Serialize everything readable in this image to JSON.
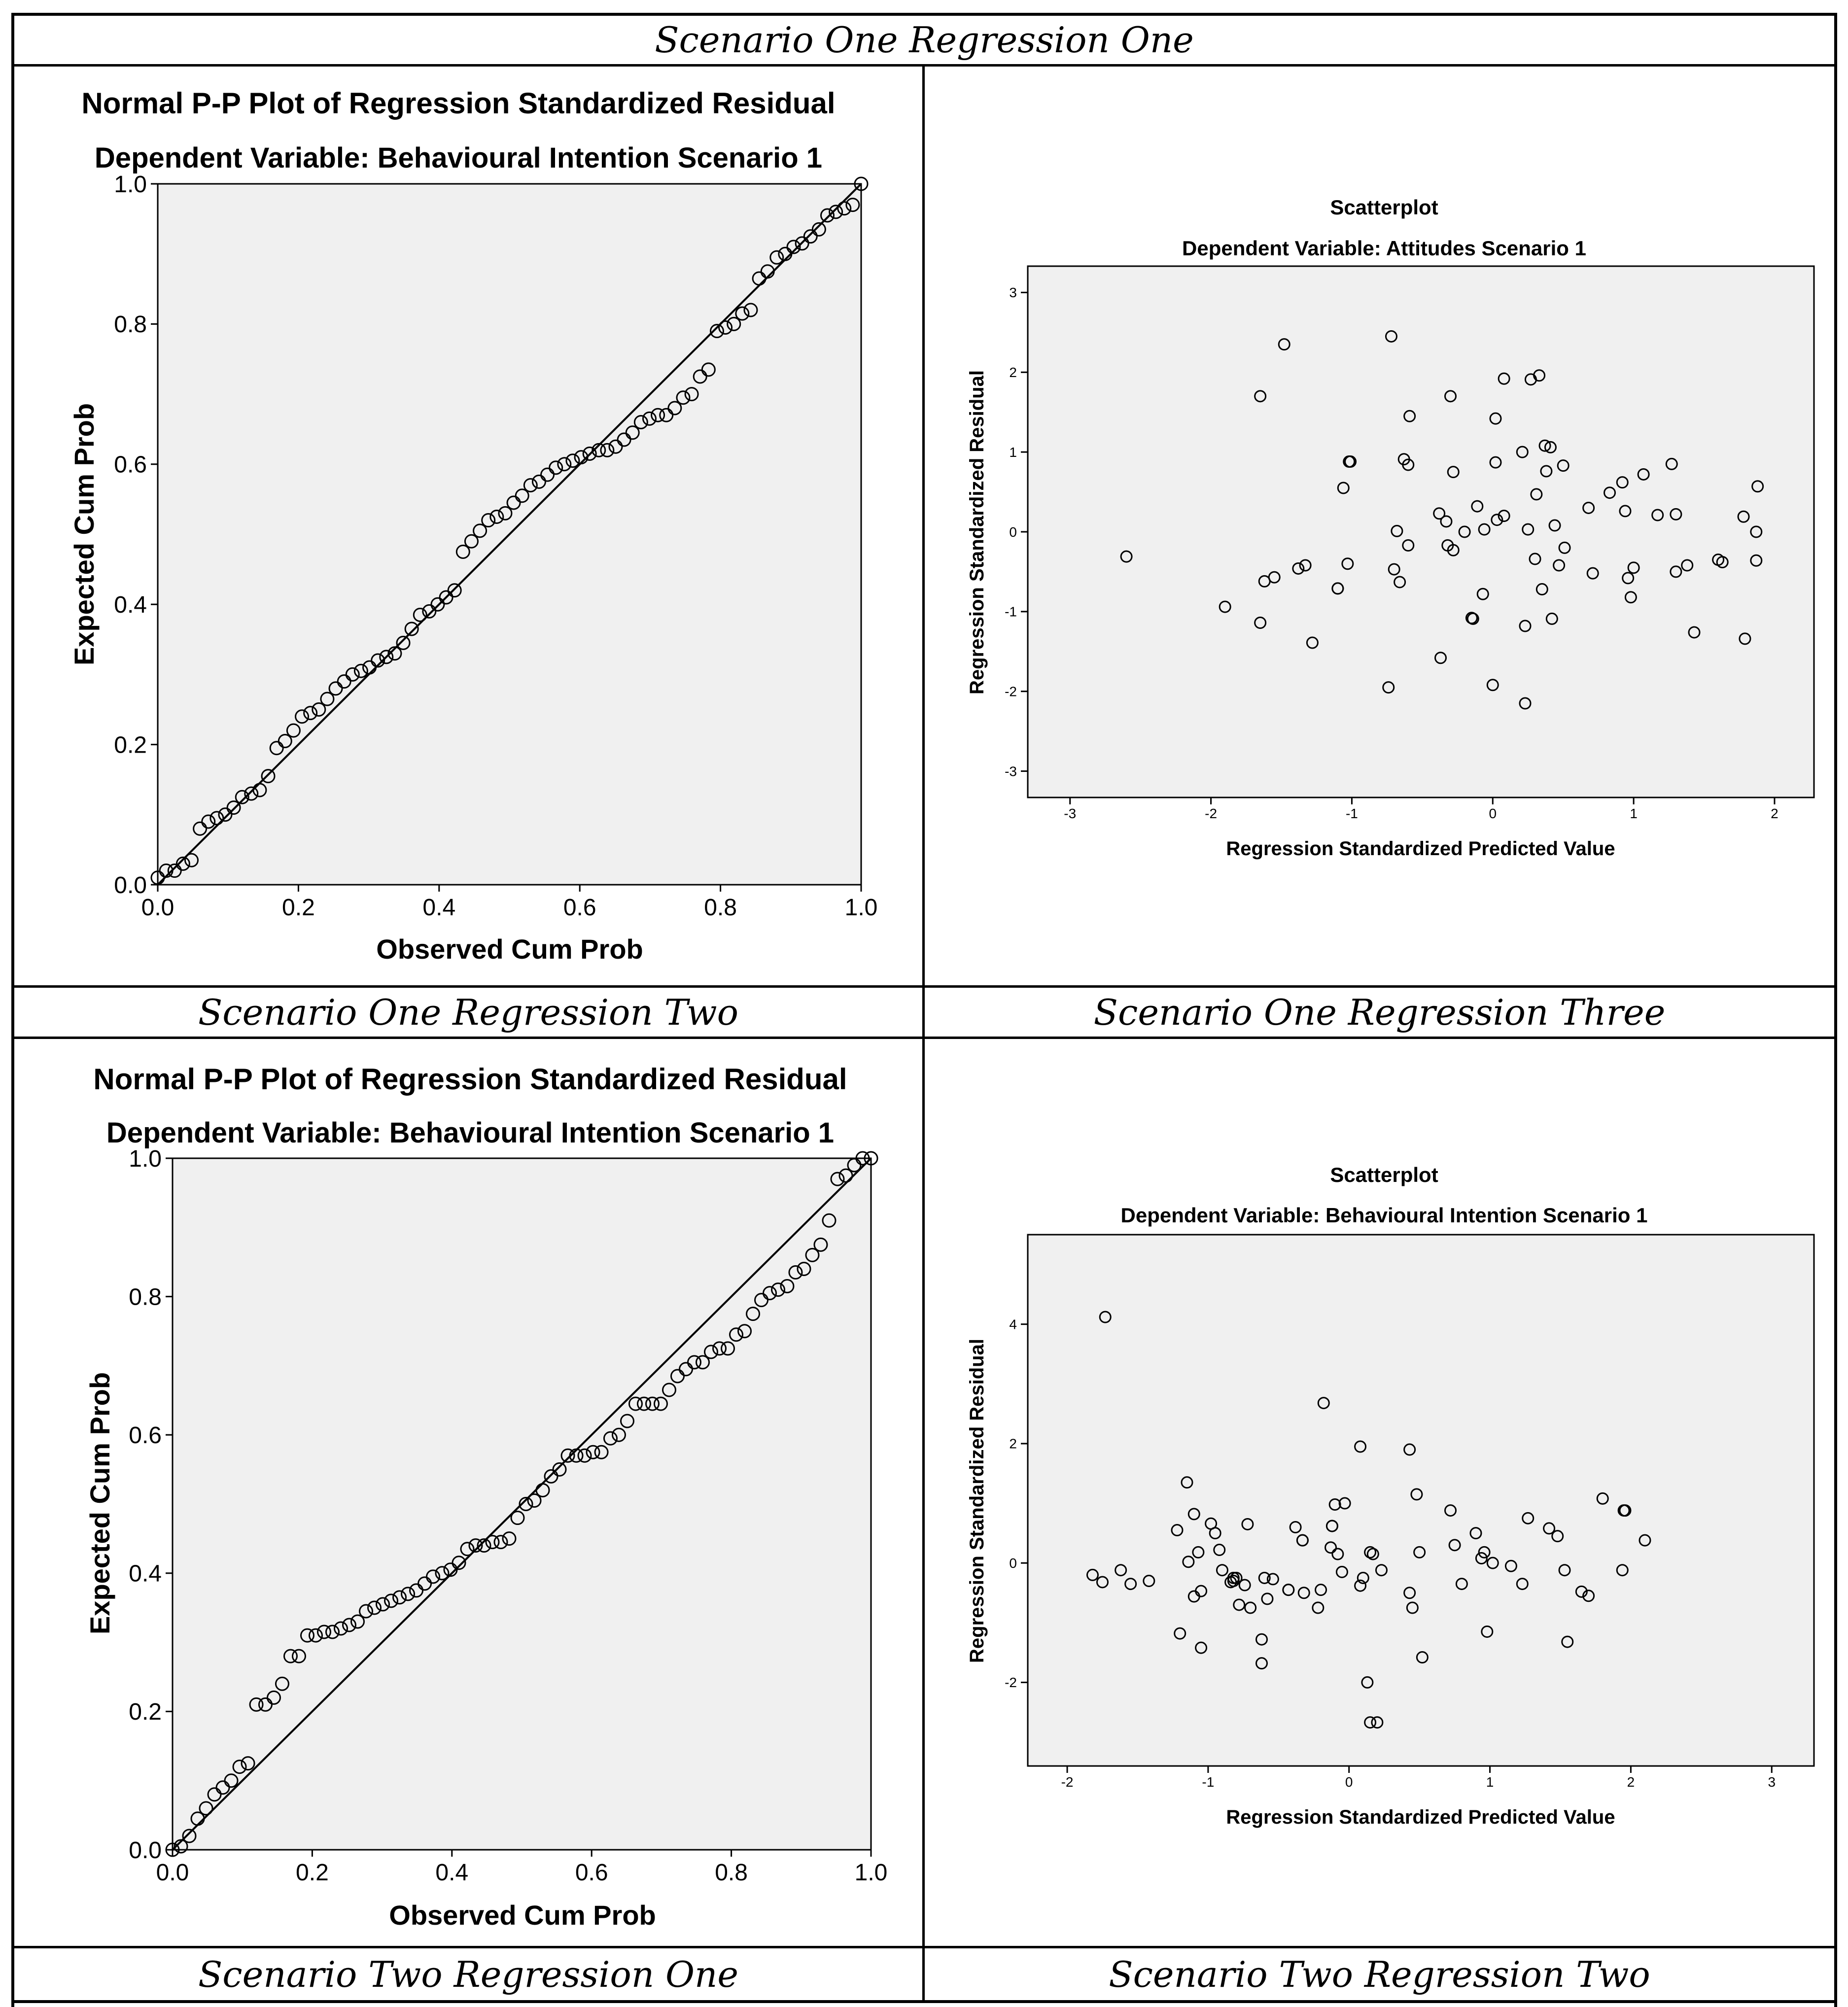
{
  "captions": {
    "top": "Scenario One Regression One",
    "middle_left": "Scenario One Regression Two",
    "middle_right": "Scenario One Regression Three",
    "bottom_left": "Scenario Two Regression One",
    "bottom_right": "Scenario Two Regression Two"
  },
  "chart_data": [
    {
      "type": "scatter",
      "title": "Normal P-P Plot of Regression Standardized Residual",
      "subtitle": "Dependent Variable: Behavioural Intention Scenario 1",
      "xlabel": "Observed Cum Prob",
      "ylabel": "Expected Cum Prob",
      "xlim": [
        0,
        1
      ],
      "ylim": [
        0,
        1
      ],
      "xticks": [
        "0.0",
        "0.2",
        "0.4",
        "0.6",
        "0.8",
        "1.0"
      ],
      "yticks": [
        "0.0",
        "0.2",
        "0.4",
        "0.6",
        "0.8",
        "1.0"
      ],
      "reference_line": [
        [
          0,
          0
        ],
        [
          1,
          1
        ]
      ],
      "x": [
        0.0,
        0.012,
        0.024,
        0.036,
        0.048,
        0.06,
        0.072,
        0.084,
        0.096,
        0.108,
        0.12,
        0.133,
        0.145,
        0.157,
        0.169,
        0.181,
        0.193,
        0.205,
        0.217,
        0.229,
        0.241,
        0.253,
        0.265,
        0.277,
        0.289,
        0.301,
        0.313,
        0.325,
        0.337,
        0.349,
        0.361,
        0.373,
        0.386,
        0.398,
        0.41,
        0.422,
        0.434,
        0.446,
        0.458,
        0.47,
        0.482,
        0.494,
        0.506,
        0.518,
        0.53,
        0.542,
        0.554,
        0.566,
        0.578,
        0.59,
        0.602,
        0.614,
        0.627,
        0.639,
        0.651,
        0.663,
        0.675,
        0.687,
        0.699,
        0.711,
        0.723,
        0.735,
        0.747,
        0.759,
        0.771,
        0.783,
        0.795,
        0.807,
        0.819,
        0.831,
        0.843,
        0.855,
        0.867,
        0.88,
        0.892,
        0.904,
        0.916,
        0.928,
        0.94,
        0.952,
        0.964,
        0.976,
        0.988,
        1.0
      ],
      "values": [
        0.01,
        0.02,
        0.02,
        0.03,
        0.035,
        0.08,
        0.09,
        0.095,
        0.1,
        0.11,
        0.125,
        0.13,
        0.135,
        0.155,
        0.195,
        0.205,
        0.22,
        0.24,
        0.245,
        0.25,
        0.265,
        0.28,
        0.29,
        0.3,
        0.305,
        0.31,
        0.32,
        0.325,
        0.33,
        0.345,
        0.365,
        0.385,
        0.39,
        0.4,
        0.41,
        0.42,
        0.475,
        0.49,
        0.505,
        0.52,
        0.525,
        0.53,
        0.545,
        0.555,
        0.57,
        0.575,
        0.585,
        0.595,
        0.6,
        0.605,
        0.61,
        0.615,
        0.62,
        0.62,
        0.625,
        0.635,
        0.645,
        0.66,
        0.665,
        0.67,
        0.67,
        0.68,
        0.695,
        0.7,
        0.725,
        0.735,
        0.79,
        0.795,
        0.8,
        0.815,
        0.82,
        0.865,
        0.875,
        0.895,
        0.9,
        0.91,
        0.915,
        0.925,
        0.935,
        0.955,
        0.96,
        0.965,
        0.97,
        1.0
      ]
    },
    {
      "type": "scatter",
      "title": "Scatterplot",
      "subtitle": "Dependent Variable: Attitudes Scenario 1",
      "xlabel": "Regression Standardized Predicted Value",
      "ylabel": "Regression Standardized Residual",
      "xlim": [
        -3.3,
        2.28
      ],
      "ylim": [
        -3.33,
        3.33
      ],
      "xticks": [
        -3,
        -2,
        -1,
        0,
        1,
        2
      ],
      "yticks": [
        -3,
        -2,
        -1,
        0,
        1,
        2,
        3
      ],
      "x": [
        -2.6,
        -1.9,
        -1.65,
        -1.65,
        -1.62,
        -1.55,
        -1.48,
        -1.38,
        -1.33,
        -1.28,
        -1.1,
        -1.1,
        -1.06,
        -1.03,
        -1.02,
        -1.01,
        -0.74,
        -0.72,
        -0.7,
        -0.68,
        -0.66,
        -0.63,
        -0.6,
        -0.6,
        -0.59,
        -0.38,
        -0.37,
        -0.33,
        -0.32,
        -0.3,
        -0.28,
        -0.28,
        -0.2,
        -0.15,
        -0.14,
        -0.11,
        -0.07,
        -0.06,
        0.0,
        0.02,
        0.02,
        0.03,
        0.08,
        0.08,
        0.21,
        0.23,
        0.23,
        0.25,
        0.27,
        0.3,
        0.31,
        0.33,
        0.35,
        0.37,
        0.38,
        0.41,
        0.42,
        0.44,
        0.47,
        0.5,
        0.51,
        0.68,
        0.71,
        0.83,
        0.92,
        0.94,
        0.96,
        0.98,
        1.0,
        1.07,
        1.17,
        1.27,
        1.3,
        1.3,
        1.38,
        1.43,
        1.6,
        1.63,
        1.78,
        1.79,
        1.87,
        1.87,
        1.88
      ],
      "values": [
        -0.31,
        -0.94,
        -1.14,
        1.7,
        -0.62,
        -0.57,
        2.35,
        -0.46,
        -0.42,
        -1.39,
        -0.71,
        -0.71,
        0.55,
        -0.4,
        0.88,
        0.88,
        -1.95,
        2.45,
        -0.47,
        0.01,
        -0.63,
        0.91,
        0.84,
        -0.17,
        1.45,
        0.23,
        -1.58,
        0.13,
        -0.17,
        1.7,
        -0.23,
        0.75,
        0.0,
        -1.08,
        -1.09,
        0.32,
        -0.78,
        0.03,
        -1.92,
        0.87,
        1.42,
        0.15,
        0.2,
        1.92,
        1.0,
        -1.18,
        -2.15,
        0.03,
        1.91,
        -0.34,
        0.47,
        1.96,
        -0.72,
        1.08,
        0.76,
        1.06,
        -1.09,
        0.08,
        -0.42,
        0.83,
        -0.2,
        0.3,
        -0.52,
        0.49,
        0.62,
        0.26,
        -0.58,
        -0.82,
        -0.45,
        0.72,
        0.21,
        0.85,
        -0.5,
        0.22,
        -0.42,
        -1.26,
        -0.35,
        -0.38,
        0.19,
        -1.34,
        0.0,
        -0.36,
        0.57
      ]
    },
    {
      "type": "scatter",
      "title": "Normal P-P Plot of Regression Standardized Residual",
      "subtitle": "Dependent Variable: Behavioural Intention Scenario 1",
      "xlabel": "Observed Cum Prob",
      "ylabel": "Expected Cum Prob",
      "xlim": [
        0,
        1
      ],
      "ylim": [
        0,
        1
      ],
      "xticks": [
        "0.0",
        "0.2",
        "0.4",
        "0.6",
        "0.8",
        "1.0"
      ],
      "yticks": [
        "0.0",
        "0.2",
        "0.4",
        "0.6",
        "0.8",
        "1.0"
      ],
      "reference_line": [
        [
          0,
          0
        ],
        [
          1,
          1
        ]
      ],
      "x": [
        0.0,
        0.012,
        0.024,
        0.036,
        0.048,
        0.06,
        0.072,
        0.084,
        0.096,
        0.108,
        0.12,
        0.133,
        0.145,
        0.157,
        0.169,
        0.181,
        0.193,
        0.205,
        0.217,
        0.229,
        0.241,
        0.253,
        0.265,
        0.277,
        0.289,
        0.301,
        0.313,
        0.325,
        0.337,
        0.349,
        0.361,
        0.373,
        0.386,
        0.398,
        0.41,
        0.422,
        0.434,
        0.446,
        0.458,
        0.47,
        0.482,
        0.494,
        0.506,
        0.518,
        0.53,
        0.542,
        0.554,
        0.566,
        0.578,
        0.59,
        0.602,
        0.614,
        0.627,
        0.639,
        0.651,
        0.663,
        0.675,
        0.687,
        0.699,
        0.711,
        0.723,
        0.735,
        0.747,
        0.759,
        0.771,
        0.783,
        0.795,
        0.807,
        0.819,
        0.831,
        0.843,
        0.855,
        0.867,
        0.88,
        0.892,
        0.904,
        0.916,
        0.928,
        0.94,
        0.952,
        0.964,
        0.976,
        0.988,
        1.0
      ],
      "values": [
        0.0,
        0.005,
        0.02,
        0.045,
        0.06,
        0.08,
        0.09,
        0.1,
        0.12,
        0.125,
        0.21,
        0.21,
        0.22,
        0.24,
        0.28,
        0.28,
        0.31,
        0.31,
        0.315,
        0.315,
        0.32,
        0.325,
        0.33,
        0.345,
        0.35,
        0.355,
        0.36,
        0.365,
        0.37,
        0.375,
        0.385,
        0.395,
        0.4,
        0.405,
        0.415,
        0.435,
        0.44,
        0.44,
        0.445,
        0.445,
        0.45,
        0.48,
        0.5,
        0.505,
        0.52,
        0.54,
        0.55,
        0.57,
        0.57,
        0.57,
        0.575,
        0.575,
        0.595,
        0.6,
        0.62,
        0.645,
        0.645,
        0.645,
        0.645,
        0.665,
        0.685,
        0.695,
        0.705,
        0.705,
        0.72,
        0.725,
        0.725,
        0.745,
        0.75,
        0.775,
        0.795,
        0.805,
        0.81,
        0.815,
        0.835,
        0.84,
        0.86,
        0.875,
        0.91,
        0.97,
        0.975,
        0.99,
        1.0,
        1.0
      ]
    },
    {
      "type": "scatter",
      "title": "Scatterplot",
      "subtitle": "Dependent Variable: Behavioural Intention Scenario 1",
      "xlabel": "Regression Standardized Predicted Value",
      "ylabel": "Regression Standardized Residual",
      "xlim": [
        -2.28,
        3.3
      ],
      "ylim": [
        -3.4,
        5.5
      ],
      "xticks": [
        -2,
        -1,
        0,
        1,
        2,
        3
      ],
      "yticks": [
        -2,
        0,
        2,
        4
      ],
      "x": [
        -1.82,
        -1.75,
        -1.73,
        -1.62,
        -1.55,
        -1.42,
        -1.22,
        -1.2,
        -1.15,
        -1.14,
        -1.1,
        -1.1,
        -1.07,
        -1.05,
        -1.05,
        -0.98,
        -0.95,
        -0.92,
        -0.9,
        -0.84,
        -0.82,
        -0.82,
        -0.8,
        -0.78,
        -0.74,
        -0.72,
        -0.7,
        -0.62,
        -0.62,
        -0.6,
        -0.58,
        -0.54,
        -0.43,
        -0.43,
        -0.38,
        -0.33,
        -0.33,
        -0.32,
        -0.22,
        -0.2,
        -0.18,
        -0.13,
        -0.12,
        -0.12,
        -0.1,
        -0.08,
        -0.05,
        -0.03,
        0.08,
        0.08,
        0.1,
        0.13,
        0.15,
        0.15,
        0.17,
        0.2,
        0.23,
        0.43,
        0.43,
        0.45,
        0.48,
        0.5,
        0.52,
        0.72,
        0.75,
        0.8,
        0.9,
        0.94,
        0.96,
        0.98,
        1.02,
        1.15,
        1.23,
        1.27,
        1.42,
        1.48,
        1.53,
        1.55,
        1.65,
        1.7,
        1.8,
        1.94,
        1.95,
        1.96,
        2.1
      ],
      "values": [
        -0.2,
        -0.32,
        4.12,
        -0.12,
        -0.35,
        -0.3,
        0.55,
        -1.18,
        1.35,
        0.02,
        0.82,
        -0.56,
        0.18,
        -0.47,
        -1.42,
        0.66,
        0.5,
        0.22,
        -0.12,
        -0.32,
        -0.25,
        -0.3,
        -0.25,
        -0.7,
        -0.37,
        0.65,
        -0.75,
        -1.28,
        -1.68,
        -0.25,
        -0.6,
        -0.27,
        -0.45,
        -0.45,
        0.6,
        0.38,
        0.38,
        -0.5,
        -0.75,
        -0.45,
        2.68,
        0.26,
        0.62,
        0.62,
        0.98,
        0.15,
        -0.15,
        1.0,
        1.95,
        -0.38,
        -0.25,
        -2.0,
        0.18,
        -2.67,
        0.15,
        -2.67,
        -0.12,
        1.9,
        -0.5,
        -0.75,
        1.15,
        0.18,
        -1.58,
        0.88,
        0.3,
        -0.35,
        0.5,
        0.08,
        0.18,
        -1.15,
        0.0,
        -0.05,
        -0.35,
        0.75,
        0.58,
        0.45,
        -0.12,
        -1.32,
        -0.48,
        -0.55,
        1.08,
        -0.12,
        0.88,
        0.88,
        0.38
      ]
    }
  ]
}
